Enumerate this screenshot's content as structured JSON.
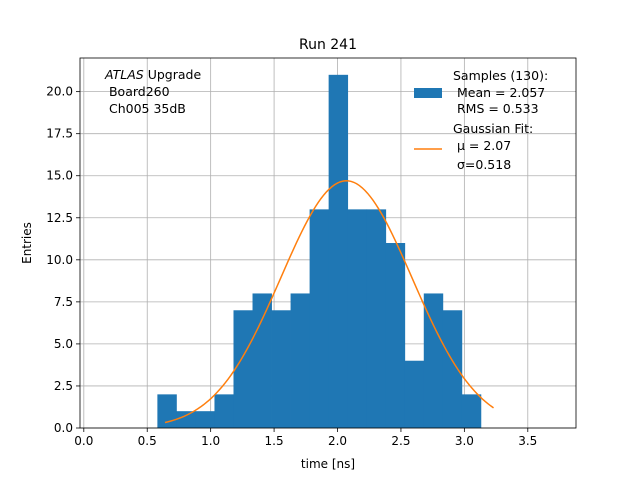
{
  "chart_data": {
    "type": "bar",
    "title": "Run 241",
    "xlabel": "time [ns]",
    "ylabel": "Entries",
    "xlim": [
      -0.03,
      3.88
    ],
    "ylim": [
      0,
      22
    ],
    "grid": true,
    "xticks": [
      0.0,
      0.5,
      1.0,
      1.5,
      2.0,
      2.5,
      3.0,
      3.5
    ],
    "xtick_labels": [
      "0.0",
      "0.5",
      "1.0",
      "1.5",
      "2.0",
      "2.5",
      "3.0",
      "3.5"
    ],
    "yticks": [
      0.0,
      2.5,
      5.0,
      7.5,
      10.0,
      12.5,
      15.0,
      17.5,
      20.0
    ],
    "ytick_labels": [
      "0.0",
      "2.5",
      "5.0",
      "7.5",
      "10.0",
      "12.5",
      "15.0",
      "17.5",
      "20.0"
    ],
    "histogram": {
      "color": "#1f77b4",
      "bin_edges": [
        0.58,
        0.73,
        0.88,
        1.03,
        1.18,
        1.33,
        1.48,
        1.63,
        1.78,
        1.93,
        2.08,
        2.23,
        2.38,
        2.53,
        2.68,
        2.83,
        2.98,
        3.13,
        3.28
      ],
      "counts": [
        2,
        1,
        1,
        2,
        7,
        8,
        7,
        8,
        13,
        21,
        13,
        13,
        11,
        4,
        8,
        7,
        2,
        0
      ]
    },
    "fit": {
      "color": "#ff7f0e",
      "amplitude": 14.7,
      "mean": 2.07,
      "sigma": 0.518,
      "x_range": [
        0.64,
        3.23
      ]
    },
    "annotation": {
      "line1_italic": "ATLAS",
      "line1_rest": " Upgrade",
      "line2": " Board260",
      "line3": " Ch005 35dB"
    },
    "legend": {
      "position": "top-right",
      "samples_title": "Samples (130):",
      "samples_mean": " Mean = 2.057",
      "samples_rms": " RMS = 0.533",
      "fit_title": "Gaussian Fit:",
      "fit_mu": " μ = 2.07",
      "fit_sigma": " σ=0.518"
    }
  }
}
